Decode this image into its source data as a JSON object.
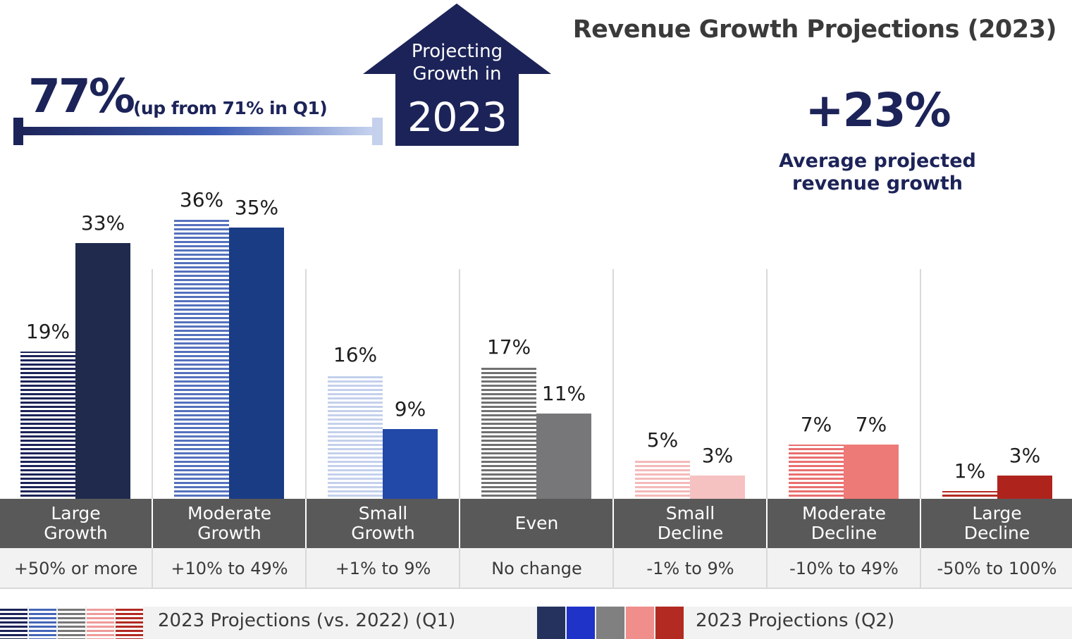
{
  "headline": "Revenue Growth Projections (2023)",
  "summary": {
    "percent": "77%",
    "note": "(up from 71% in Q1)"
  },
  "house": {
    "label_line1": "Projecting",
    "label_line2": "Growth in",
    "year": "2023"
  },
  "average": {
    "value": "+23%",
    "label_line1": "Average projected",
    "label_line2": "revenue growth"
  },
  "chart_data": {
    "type": "bar",
    "title": "Revenue Growth Projections (2023)",
    "ylim": [
      0,
      40
    ],
    "grid": false,
    "legend_position": "bottom",
    "categories": [
      {
        "name_line1": "Large",
        "name_line2": "Growth",
        "range": "+50% or more"
      },
      {
        "name_line1": "Moderate",
        "name_line2": "Growth",
        "range": "+10% to 49%"
      },
      {
        "name_line1": "Small",
        "name_line2": "Growth",
        "range": "+1% to 9%"
      },
      {
        "name_line1": "",
        "name_line2": "Even",
        "range": "No change"
      },
      {
        "name_line1": "Small",
        "name_line2": "Decline",
        "range": "-1% to 9%"
      },
      {
        "name_line1": "Moderate",
        "name_line2": "Decline",
        "range": "-10% to 49%"
      },
      {
        "name_line1": "Large",
        "name_line2": "Decline",
        "range": "-50% to 100%"
      }
    ],
    "series": [
      {
        "name": "2023 Projections (vs. 2022) (Q1)",
        "values": [
          19,
          36,
          16,
          17,
          5,
          7,
          1
        ],
        "labels": [
          "19%",
          "36%",
          "16%",
          "17%",
          "5%",
          "7%",
          "1%"
        ]
      },
      {
        "name": "2023 Projections (Q2)",
        "values": [
          33,
          35,
          9,
          11,
          3,
          7,
          3
        ],
        "labels": [
          "33%",
          "35%",
          "9%",
          "11%",
          "3%",
          "7%",
          "3%"
        ]
      }
    ],
    "q1_colors": [
      "#1c2358",
      "#4466b8",
      "#777777",
      "#f2b8b8",
      "#e86f6f",
      "#b22a22",
      "#b22a22"
    ],
    "q2_colors": [
      "#1f2a4d",
      "#1a3c84",
      "#2249a8",
      "#77777a",
      "#f6c1c1",
      "#ee7a77",
      "#ae241d"
    ],
    "q1_stripe_colors": [
      "#1c2358",
      "#5471bd",
      "#c4d0ec",
      "#707070",
      "#f4b9b9",
      "#e96f6f",
      "#b22a22"
    ]
  },
  "legend": {
    "q1_swatches": [
      "#1c2358",
      "#4466b8",
      "#777777",
      "#ee9a9a",
      "#b22a22"
    ],
    "q2_swatches": [
      "#25325e",
      "#1f33c8",
      "#808080",
      "#ef8e8b",
      "#b22a22"
    ]
  }
}
